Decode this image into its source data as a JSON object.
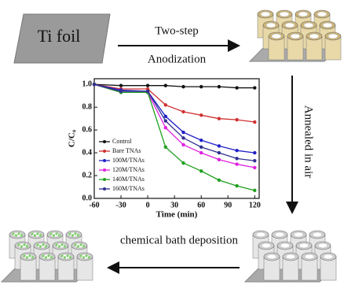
{
  "labels": {
    "ti_foil": "Ti foil",
    "step1_top": "Two-step",
    "step1_bottom": "Anodization",
    "step2": "Annealed in air",
    "step3": "chemical  bath deposition"
  },
  "chart_data": {
    "type": "line",
    "x_label": "Time (min)",
    "y_label": "C/C₀",
    "x": [
      -60,
      -30,
      0,
      20,
      40,
      60,
      80,
      100,
      120
    ],
    "xlim": [
      -60,
      125
    ],
    "xticks": [
      -60,
      -30,
      0,
      30,
      60,
      90,
      120
    ],
    "ylim": [
      0,
      1.05
    ],
    "yticks": [
      {
        "value": 0,
        "label": "0.0"
      },
      0.2,
      0.4,
      0.6,
      0.8,
      {
        "value": 1,
        "label": "1.0"
      }
    ],
    "legend": "lower left",
    "series": [
      {
        "name": "Control",
        "color": "#111111",
        "values": [
          1.0,
          0.99,
          0.99,
          0.99,
          0.98,
          0.98,
          0.98,
          0.97,
          0.97
        ]
      },
      {
        "name": "Bare TNAs",
        "color": "#d03030",
        "values": [
          1.0,
          0.96,
          0.96,
          0.82,
          0.76,
          0.73,
          0.7,
          0.69,
          0.67
        ]
      },
      {
        "name": "100M/TNAs",
        "color": "#2020c8",
        "values": [
          1.0,
          0.95,
          0.94,
          0.72,
          0.58,
          0.51,
          0.46,
          0.42,
          0.4
        ]
      },
      {
        "name": "120M/TNAs",
        "color": "#e020e0",
        "values": [
          1.0,
          0.93,
          0.93,
          0.62,
          0.47,
          0.4,
          0.34,
          0.3,
          0.27
        ]
      },
      {
        "name": "140M/TNAs",
        "color": "#20a020",
        "values": [
          1.0,
          0.93,
          0.93,
          0.45,
          0.31,
          0.24,
          0.16,
          0.11,
          0.07
        ]
      },
      {
        "name": "160M/TNAs",
        "color": "#303090",
        "values": [
          1.0,
          0.94,
          0.94,
          0.68,
          0.53,
          0.45,
          0.4,
          0.35,
          0.33
        ]
      }
    ]
  }
}
